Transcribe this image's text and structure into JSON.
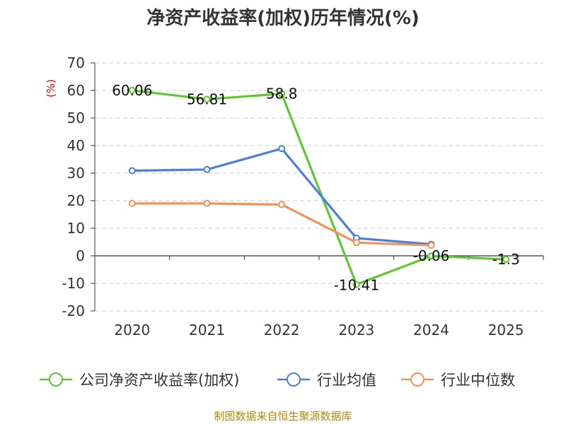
{
  "chart_data": {
    "type": "line",
    "title": "净资产收益率(加权)历年情况(%)",
    "ylabel": "(%)",
    "xlabel": "",
    "categories": [
      "2020",
      "2021",
      "2022",
      "2023",
      "2024",
      "2025"
    ],
    "ylim": [
      -20,
      70
    ],
    "yticks": [
      70,
      60,
      50,
      40,
      30,
      20,
      10,
      0,
      -10,
      -20
    ],
    "ytick_labels": [
      "70",
      "60",
      "50",
      "40",
      "30",
      "20",
      "10",
      "0",
      "-10",
      "-20"
    ],
    "grid": true,
    "legend_position": "bottom",
    "series": [
      {
        "name": "公司净资产收益率(加权)",
        "color": "#5cc832",
        "values": [
          60.06,
          56.81,
          58.8,
          -10.41,
          -0.06,
          -1.3
        ],
        "labels": [
          "60.06",
          "56.81",
          "58.8",
          "-10.41",
          "-0.06",
          "-1.3"
        ]
      },
      {
        "name": "行业均值",
        "color": "#4a7fdc",
        "values": [
          30.9,
          31.3,
          38.9,
          6.4,
          4.2,
          null
        ]
      },
      {
        "name": "行业中位数",
        "color": "#f39257",
        "values": [
          19.0,
          19.0,
          18.6,
          4.8,
          3.8,
          null
        ]
      }
    ]
  },
  "source_note": "制图数据来自恒生聚源数据库"
}
